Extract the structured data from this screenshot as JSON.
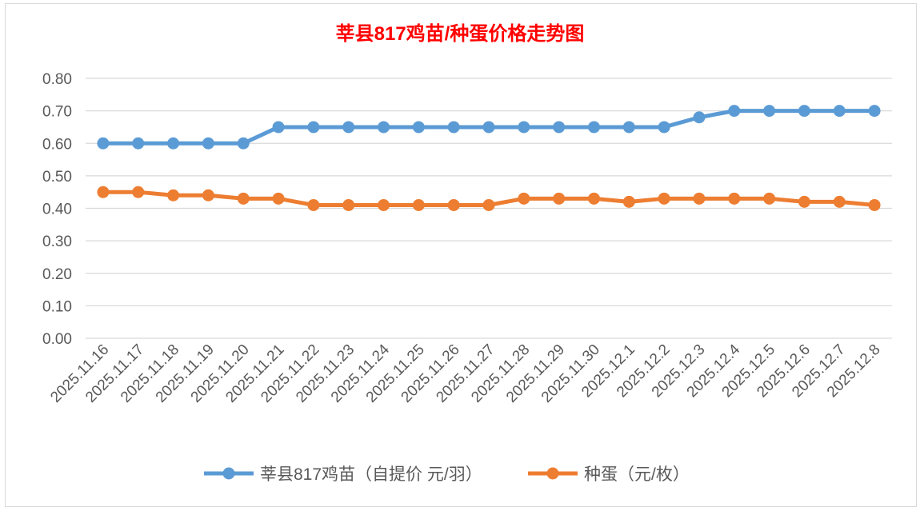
{
  "chart_data": {
    "type": "line",
    "title": "莘县817鸡苗/种蛋价格走势图",
    "title_color": "#ff0000",
    "xlabel": "",
    "ylabel": "",
    "ylim": [
      0,
      0.8
    ],
    "yticks": [
      "0.00",
      "0.10",
      "0.20",
      "0.30",
      "0.40",
      "0.50",
      "0.60",
      "0.70",
      "0.80"
    ],
    "grid": true,
    "legend_position": "bottom",
    "categories": [
      "2025.11.16",
      "2025.11.17",
      "2025.11.18",
      "2025.11.19",
      "2025.11.20",
      "2025.11.21",
      "2025.11.22",
      "2025.11.23",
      "2025.11.24",
      "2025.11.25",
      "2025.11.26",
      "2025.11.27",
      "2025.11.28",
      "2025.11.29",
      "2025.11.30",
      "2025.12.1",
      "2025.12.2",
      "2025.12.3",
      "2025.12.4",
      "2025.12.5",
      "2025.12.6",
      "2025.12.7",
      "2025.12.8"
    ],
    "series": [
      {
        "name": "莘县817鸡苗（自提价 元/羽）",
        "color": "#5b9bd5",
        "values": [
          0.6,
          0.6,
          0.6,
          0.6,
          0.6,
          0.65,
          0.65,
          0.65,
          0.65,
          0.65,
          0.65,
          0.65,
          0.65,
          0.65,
          0.65,
          0.65,
          0.65,
          0.68,
          0.7,
          0.7,
          0.7,
          0.7,
          0.7
        ]
      },
      {
        "name": "种蛋（元/枚）",
        "color": "#ed7d31",
        "values": [
          0.45,
          0.45,
          0.44,
          0.44,
          0.43,
          0.43,
          0.41,
          0.41,
          0.41,
          0.41,
          0.41,
          0.41,
          0.43,
          0.43,
          0.43,
          0.42,
          0.43,
          0.43,
          0.43,
          0.43,
          0.42,
          0.42,
          0.41
        ]
      }
    ]
  }
}
